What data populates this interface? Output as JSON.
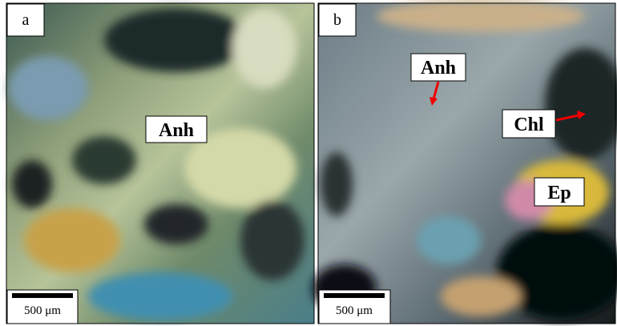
{
  "panels": [
    {
      "label": "a",
      "annotations": [
        "Anh"
      ],
      "scale_bar": "500 μm"
    },
    {
      "label": "b",
      "annotations": [
        "Anh",
        "Chl",
        "Ep"
      ],
      "scale_bar": "500 μm"
    }
  ]
}
